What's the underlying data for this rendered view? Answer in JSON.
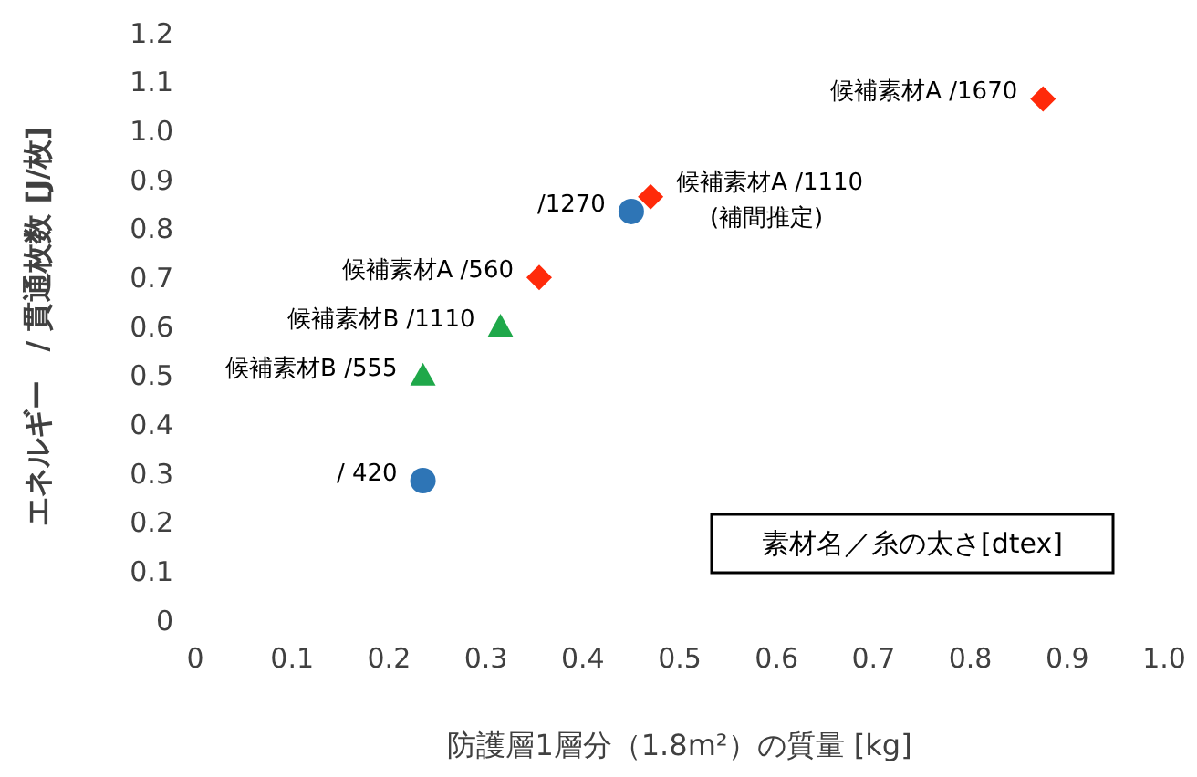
{
  "chart_data": {
    "type": "scatter",
    "xlabel": "防護層1層分（1.8m²）の質量 [kg]",
    "ylabel": "エネルギー　/ 貫通枚数 [J/枚]",
    "xlim": [
      0,
      1
    ],
    "xticks": [
      0,
      0.1,
      0.2,
      0.3,
      0.4,
      0.5,
      0.6,
      0.7,
      0.8,
      0.9,
      {
        "value": 1,
        "label": "1.0"
      }
    ],
    "ylim": [
      0,
      1.2
    ],
    "yticks": [
      0,
      0.1,
      0.2,
      0.3,
      0.4,
      0.5,
      0.6,
      0.7,
      0.8,
      0.9,
      {
        "value": 1,
        "label": "1.0"
      },
      1.1,
      1.2
    ],
    "grid": false,
    "series": [
      {
        "color": "#2e75b6",
        "marker": "circle",
        "x": [
          0.235,
          0.45
        ],
        "values": [
          0.285,
          0.835
        ]
      },
      {
        "color": "#ff2a0a",
        "marker": "diamond",
        "x": [
          0.355,
          0.47,
          0.875
        ],
        "values": [
          0.7,
          0.865,
          1.065
        ]
      },
      {
        "color": "#1fa84a",
        "marker": "triangle",
        "x": [
          0.235,
          0.315
        ],
        "values": [
          0.5,
          0.6
        ]
      }
    ],
    "annotations": [
      {
        "text": "/ 420",
        "x": 0.235,
        "y": 0.285
      },
      {
        "text": "/1270",
        "x": 0.45,
        "y": 0.835
      },
      {
        "text": "候補素材A /560",
        "x": 0.355,
        "y": 0.7
      },
      {
        "text": "候補素材A /1110\n(補間推定)",
        "x": 0.47,
        "y": 0.865
      },
      {
        "text": "候補素材A /1670",
        "x": 0.875,
        "y": 1.065
      },
      {
        "text": "候補素材B /555",
        "x": 0.235,
        "y": 0.5
      },
      {
        "text": "候補素材B /1110",
        "x": 0.315,
        "y": 0.6
      },
      "素材名／糸の太さ[dtex]"
    ]
  }
}
